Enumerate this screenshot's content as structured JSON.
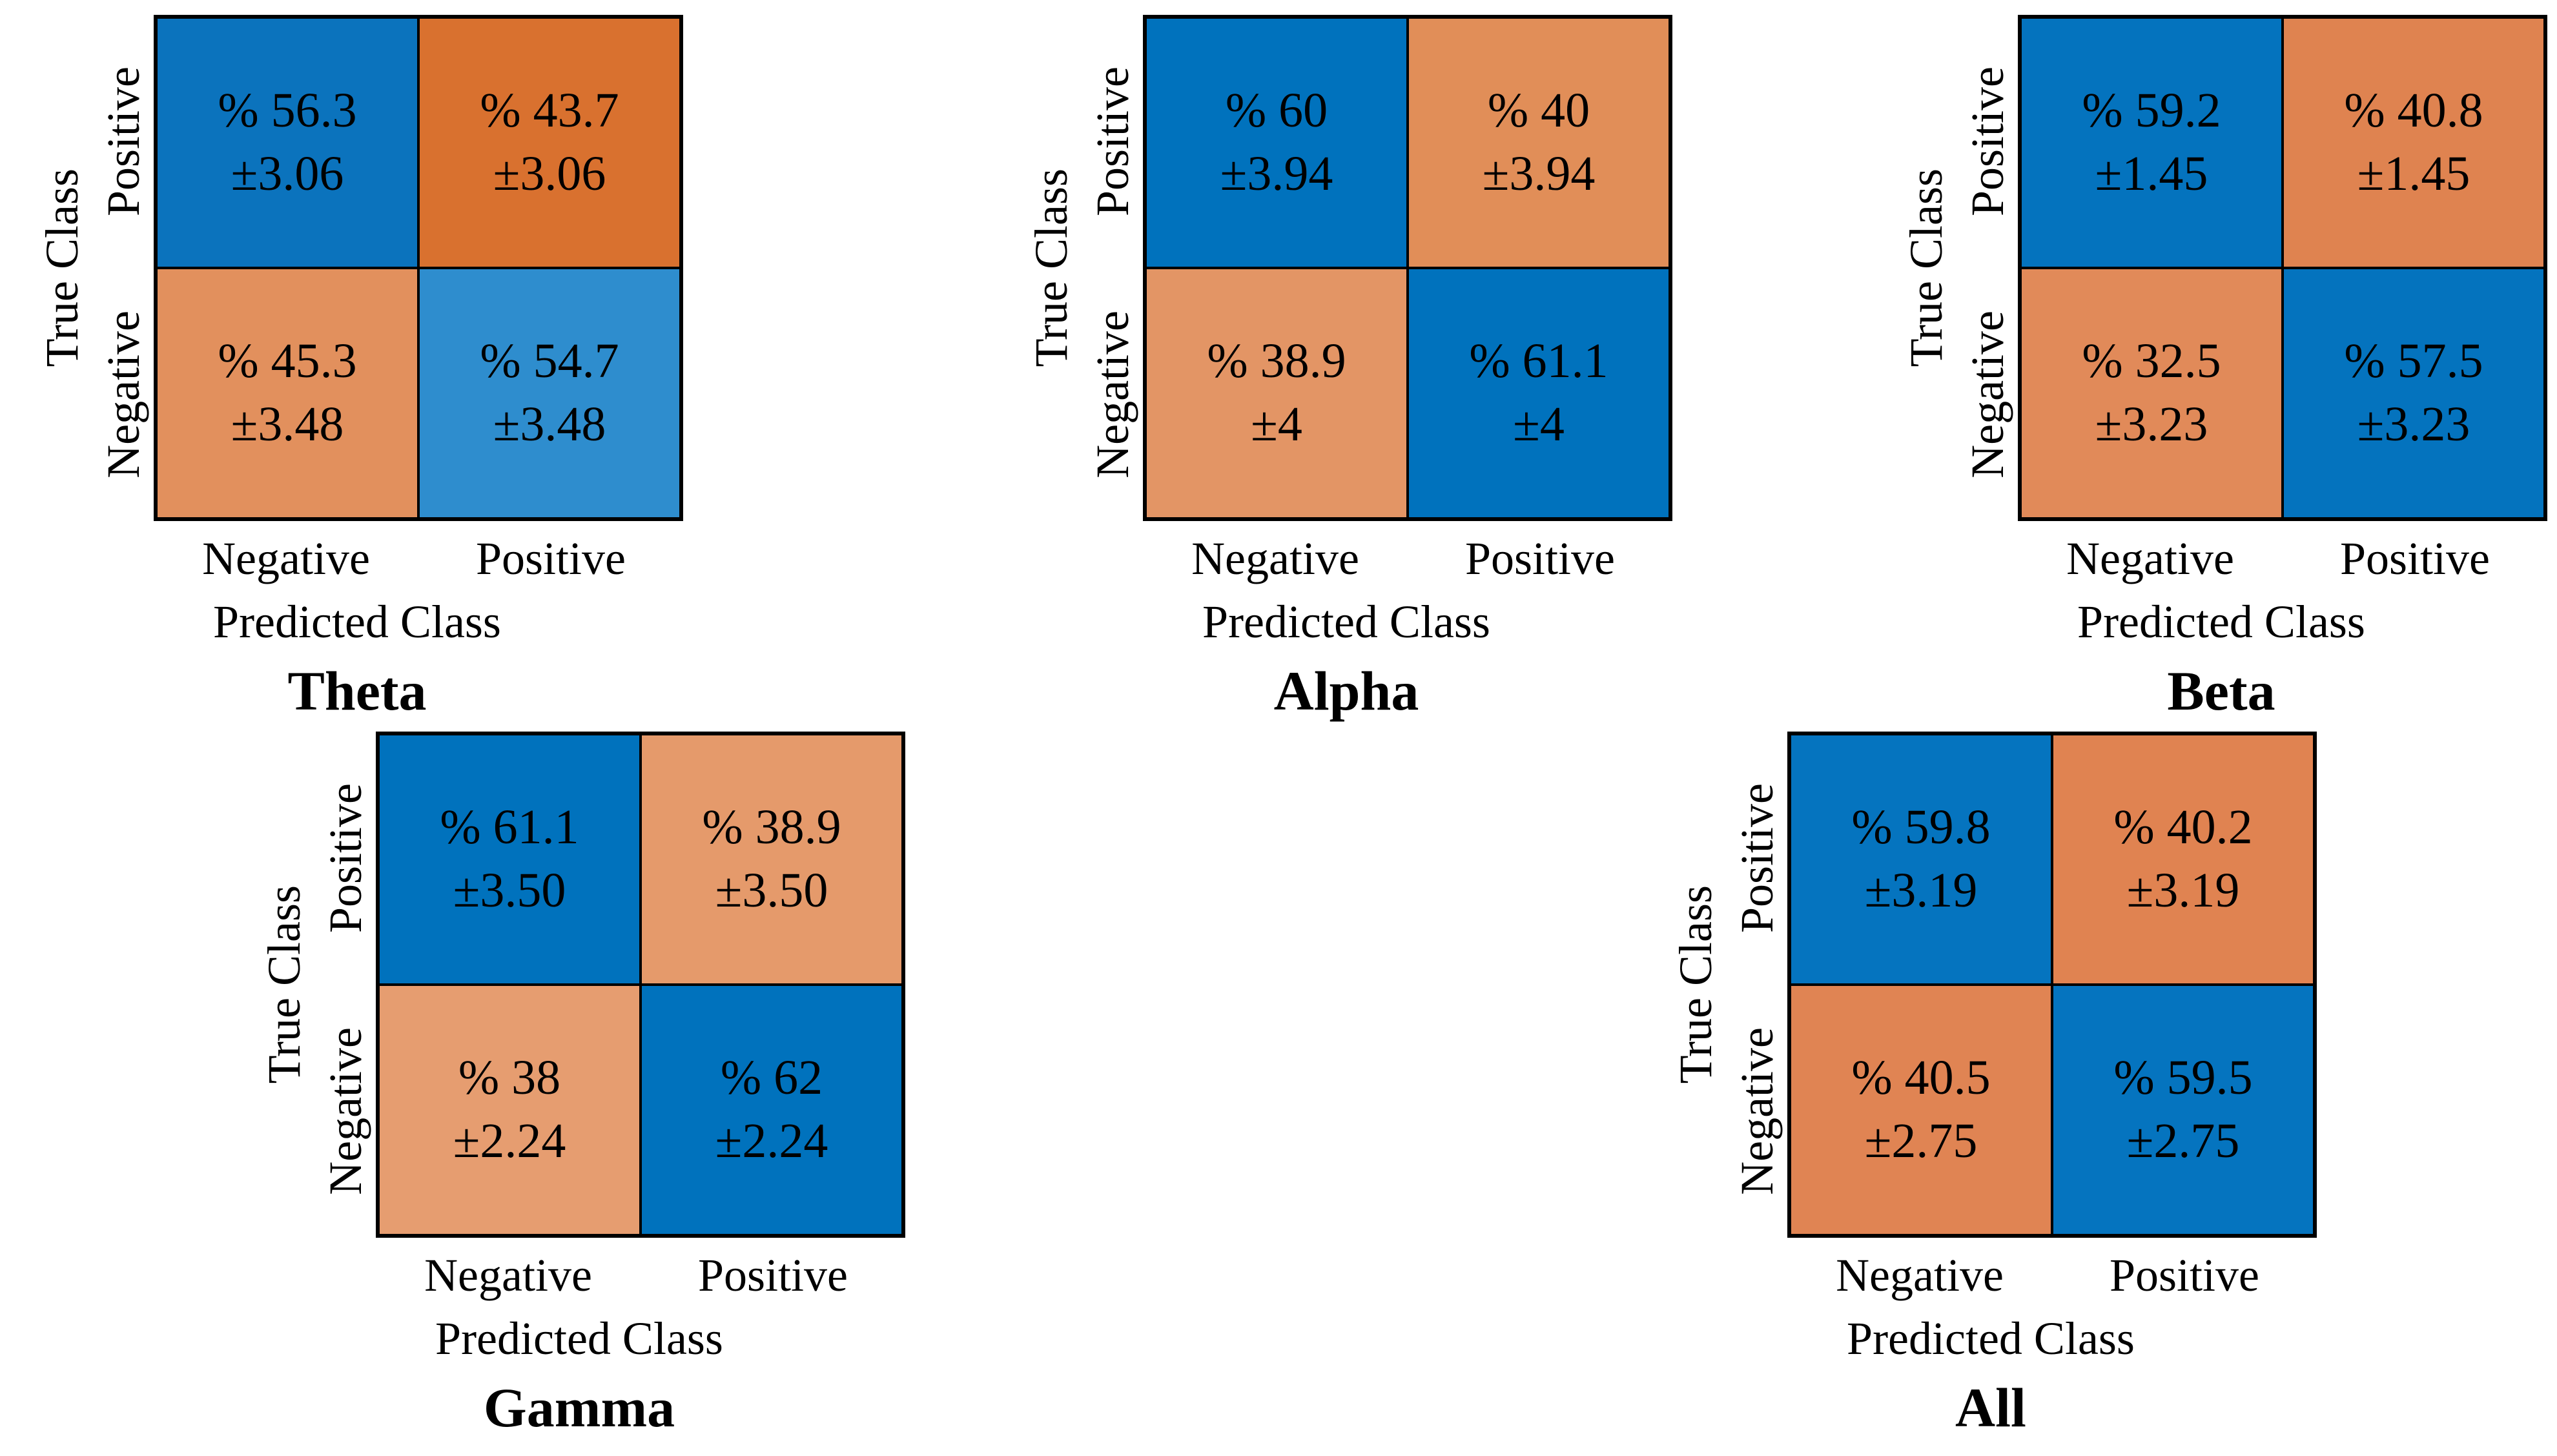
{
  "colors": {
    "background": "#ffffff",
    "grid_line": "#000000",
    "text": "#000000",
    "diagonal_blue_strong": "#0072bd",
    "diagonal_blue_light": "#2e8dce",
    "offdiagonal_orange_dark": "#d9712f",
    "offdiagonal_orange_light": "#e69d70"
  },
  "chart_data": [
    {
      "type": "heatmap",
      "subtype": "confusion-matrix",
      "title": "Theta",
      "xlabel": "Predicted Class",
      "ylabel": "True Class",
      "x_categories": [
        "Negative",
        "Positive"
      ],
      "y_categories": [
        "Positive",
        "Negative"
      ],
      "legend": "none",
      "cells": [
        {
          "true_class": "Positive",
          "predicted_class": "Negative",
          "value": "% 56.3",
          "error": "±3.06",
          "value_num": 56.3,
          "error_num": 3.06,
          "color": "#0b73bd"
        },
        {
          "true_class": "Positive",
          "predicted_class": "Positive",
          "value": "% 43.7",
          "error": "±3.06",
          "value_num": 43.7,
          "error_num": 3.06,
          "color": "#d9712f"
        },
        {
          "true_class": "Negative",
          "predicted_class": "Negative",
          "value": "% 45.3",
          "error": "±3.48",
          "value_num": 45.3,
          "error_num": 3.48,
          "color": "#e2905d"
        },
        {
          "true_class": "Negative",
          "predicted_class": "Positive",
          "value": "% 54.7",
          "error": "±3.48",
          "value_num": 54.7,
          "error_num": 3.48,
          "color": "#2e8dce"
        }
      ]
    },
    {
      "type": "heatmap",
      "subtype": "confusion-matrix",
      "title": "Alpha",
      "xlabel": "Predicted Class",
      "ylabel": "True Class",
      "x_categories": [
        "Negative",
        "Positive"
      ],
      "y_categories": [
        "Positive",
        "Negative"
      ],
      "legend": "none",
      "cells": [
        {
          "true_class": "Positive",
          "predicted_class": "Negative",
          "value": "% 60",
          "error": "±3.94",
          "value_num": 60,
          "error_num": 3.94,
          "color": "#0072bd"
        },
        {
          "true_class": "Positive",
          "predicted_class": "Positive",
          "value": "% 40",
          "error": "±3.94",
          "value_num": 40,
          "error_num": 3.94,
          "color": "#e18e58"
        },
        {
          "true_class": "Negative",
          "predicted_class": "Negative",
          "value": "% 38.9",
          "error": "±4",
          "value_num": 38.9,
          "error_num": 4,
          "color": "#e39565"
        },
        {
          "true_class": "Negative",
          "predicted_class": "Positive",
          "value": "% 61.1",
          "error": "±4",
          "value_num": 61.1,
          "error_num": 4,
          "color": "#0072bd"
        }
      ]
    },
    {
      "type": "heatmap",
      "subtype": "confusion-matrix",
      "title": "Beta",
      "xlabel": "Predicted Class",
      "ylabel": "True Class",
      "x_categories": [
        "Negative",
        "Positive"
      ],
      "y_categories": [
        "Positive",
        "Negative"
      ],
      "legend": "none",
      "cells": [
        {
          "true_class": "Positive",
          "predicted_class": "Negative",
          "value": "% 59.2",
          "error": "±1.45",
          "value_num": 59.2,
          "error_num": 1.45,
          "color": "#0473be"
        },
        {
          "true_class": "Positive",
          "predicted_class": "Positive",
          "value": "% 40.8",
          "error": "±1.45",
          "value_num": 40.8,
          "error_num": 1.45,
          "color": "#df8350"
        },
        {
          "true_class": "Negative",
          "predicted_class": "Negative",
          "value": "% 32.5",
          "error": "±3.23",
          "value_num": 32.5,
          "error_num": 3.23,
          "color": "#e18a59"
        },
        {
          "true_class": "Negative",
          "predicted_class": "Positive",
          "value": "% 57.5",
          "error": "±3.23",
          "value_num": 57.5,
          "error_num": 3.23,
          "color": "#0473be"
        }
      ]
    },
    {
      "type": "heatmap",
      "subtype": "confusion-matrix",
      "title": "Gamma",
      "xlabel": "Predicted Class",
      "ylabel": "True Class",
      "x_categories": [
        "Negative",
        "Positive"
      ],
      "y_categories": [
        "Positive",
        "Negative"
      ],
      "legend": "none",
      "cells": [
        {
          "true_class": "Positive",
          "predicted_class": "Negative",
          "value": "% 61.1",
          "error": "±3.50",
          "value_num": 61.1,
          "error_num": 3.5,
          "color": "#0072bd"
        },
        {
          "true_class": "Positive",
          "predicted_class": "Positive",
          "value": "% 38.9",
          "error": "±3.50",
          "value_num": 38.9,
          "error_num": 3.5,
          "color": "#e59a6b"
        },
        {
          "true_class": "Negative",
          "predicted_class": "Negative",
          "value": "% 38",
          "error": "±2.24",
          "value_num": 38,
          "error_num": 2.24,
          "color": "#e69d70"
        },
        {
          "true_class": "Negative",
          "predicted_class": "Positive",
          "value": "% 62",
          "error": "±2.24",
          "value_num": 62,
          "error_num": 2.24,
          "color": "#0072bd"
        }
      ]
    },
    {
      "type": "heatmap",
      "subtype": "confusion-matrix",
      "title": "All",
      "xlabel": "Predicted Class",
      "ylabel": "True Class",
      "x_categories": [
        "Negative",
        "Positive"
      ],
      "y_categories": [
        "Positive",
        "Negative"
      ],
      "legend": "none",
      "cells": [
        {
          "true_class": "Positive",
          "predicted_class": "Negative",
          "value": "% 59.8",
          "error": "±3.19",
          "value_num": 59.8,
          "error_num": 3.19,
          "color": "#0574bf"
        },
        {
          "true_class": "Positive",
          "predicted_class": "Positive",
          "value": "% 40.2",
          "error": "±3.19",
          "value_num": 40.2,
          "error_num": 3.19,
          "color": "#e08351"
        },
        {
          "true_class": "Negative",
          "predicted_class": "Negative",
          "value": "% 40.5",
          "error": "±2.75",
          "value_num": 40.5,
          "error_num": 2.75,
          "color": "#e08453"
        },
        {
          "true_class": "Negative",
          "predicted_class": "Positive",
          "value": "% 59.5",
          "error": "±2.75",
          "value_num": 59.5,
          "error_num": 2.75,
          "color": "#0574bf"
        }
      ]
    }
  ]
}
